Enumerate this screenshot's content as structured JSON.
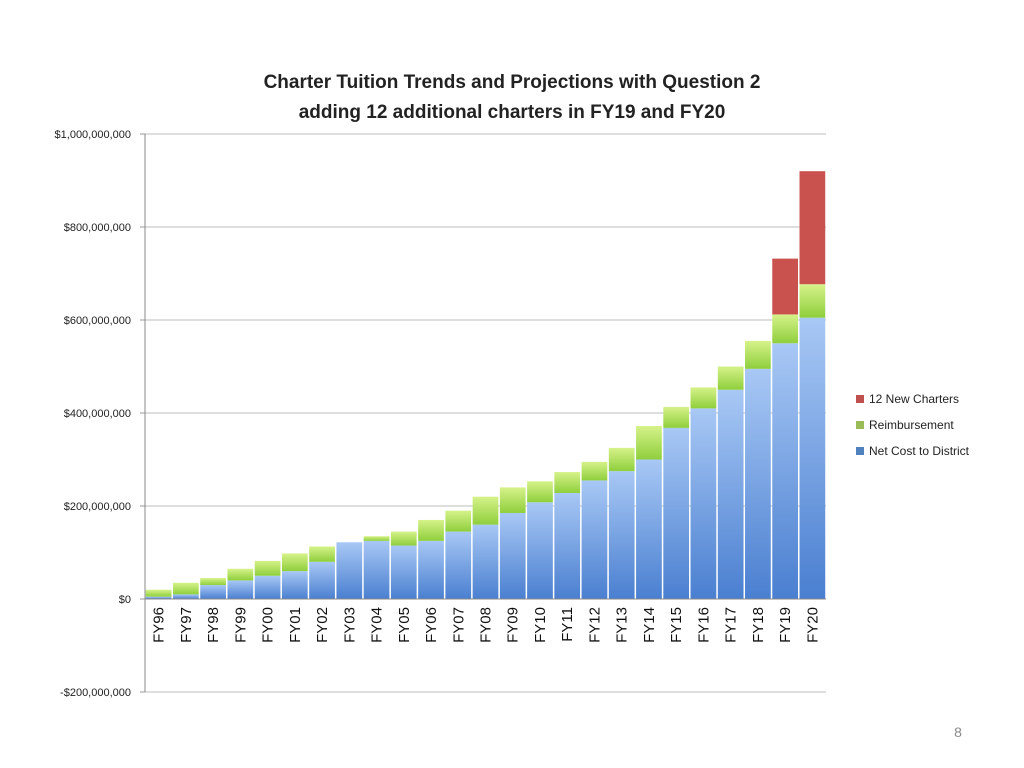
{
  "chart_data": {
    "type": "bar",
    "stacked": true,
    "title": [
      "Charter Tuition Trends and Projections with Question 2",
      "adding 12 additional charters in FY19 and FY20"
    ],
    "categories": [
      "FY96",
      "FY97",
      "FY98",
      "FY99",
      "FY00",
      "FY01",
      "FY02",
      "FY03",
      "FY04",
      "FY05",
      "FY06",
      "FY07",
      "FY08",
      "FY09",
      "FY10",
      "FY11",
      "FY12",
      "FY13",
      "FY14",
      "FY15",
      "FY16",
      "FY17",
      "FY18",
      "FY19",
      "FY20"
    ],
    "series": [
      {
        "name": "Net Cost to District",
        "color": "#4f81bd",
        "values": [
          5000000,
          10000000,
          30000000,
          40000000,
          50000000,
          60000000,
          80000000,
          122000000,
          125000000,
          115000000,
          125000000,
          145000000,
          160000000,
          185000000,
          208000000,
          228000000,
          255000000,
          275000000,
          300000000,
          368000000,
          410000000,
          450000000,
          495000000,
          550000000,
          605000000
        ]
      },
      {
        "name": "Reimbursement",
        "color": "#9bbb59",
        "values": [
          15000000,
          25000000,
          15000000,
          25000000,
          32000000,
          38000000,
          33000000,
          0,
          10000000,
          30000000,
          45000000,
          45000000,
          60000000,
          55000000,
          45000000,
          45000000,
          40000000,
          50000000,
          72000000,
          45000000,
          45000000,
          50000000,
          60000000,
          62000000,
          72000000
        ]
      },
      {
        "name": "12 New Charters",
        "color": "#c0504d",
        "values": [
          0,
          0,
          0,
          0,
          0,
          0,
          0,
          0,
          0,
          0,
          0,
          0,
          0,
          0,
          0,
          0,
          0,
          0,
          0,
          0,
          0,
          0,
          0,
          120000000,
          243000000
        ]
      }
    ],
    "ylim": [
      -200000000,
      1000000000
    ],
    "y_ticks": [
      -200000000,
      0,
      200000000,
      400000000,
      600000000,
      800000000,
      1000000000
    ],
    "y_tick_labels": [
      "-$200,000,000",
      "$0",
      "$200,000,000",
      "$400,000,000",
      "$600,000,000",
      "$800,000,000",
      "$1,000,000,000"
    ],
    "grid": true,
    "legend_position": "right"
  },
  "page_number": "8"
}
